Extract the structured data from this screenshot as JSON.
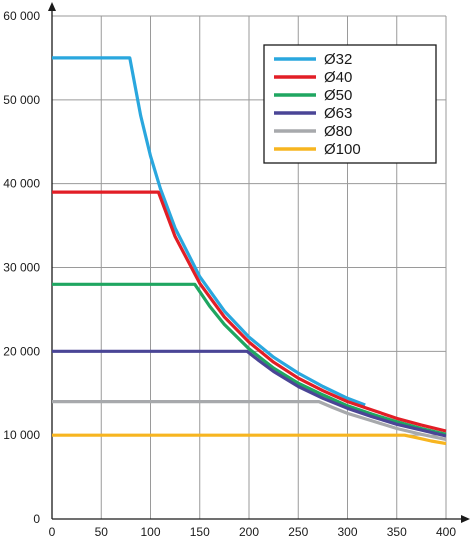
{
  "chart_data": {
    "type": "line",
    "title": "",
    "xlabel": "",
    "ylabel": "",
    "xlim": [
      0,
      400
    ],
    "ylim": [
      0,
      60000
    ],
    "x_ticks": [
      0,
      50,
      100,
      150,
      200,
      250,
      300,
      350,
      400
    ],
    "x_tick_labels": [
      "0",
      "50",
      "100",
      "150",
      "200",
      "250",
      "300",
      "350",
      "400"
    ],
    "y_ticks": [
      0,
      10000,
      20000,
      30000,
      40000,
      50000,
      60000
    ],
    "y_tick_labels": [
      "0",
      "10 000",
      "20 000",
      "30 000",
      "40 000",
      "50 000",
      "60 000"
    ],
    "grid": true,
    "legend_position": "top-right",
    "series": [
      {
        "name": "Ø32",
        "color": "#2aa7de",
        "x": [
          0,
          79,
          90,
          100,
          110,
          125,
          150,
          175,
          200,
          225,
          250,
          275,
          300,
          318
        ],
        "y": [
          55000,
          55000,
          48100,
          43300,
          39400,
          34700,
          28900,
          24800,
          21700,
          19300,
          17400,
          15800,
          14400,
          13600
        ]
      },
      {
        "name": "Ø40",
        "color": "#e21e26",
        "x": [
          0,
          108,
          125,
          150,
          175,
          200,
          225,
          250,
          275,
          300,
          325,
          350,
          375,
          400
        ],
        "y": [
          39000,
          39000,
          33700,
          28100,
          24100,
          21100,
          18700,
          16800,
          15300,
          14000,
          13000,
          12000,
          11200,
          10500
        ]
      },
      {
        "name": "Ø50",
        "color": "#1fa661",
        "x": [
          0,
          145,
          160,
          175,
          200,
          225,
          250,
          275,
          300,
          325,
          350,
          375,
          400
        ],
        "y": [
          28000,
          28000,
          25400,
          23200,
          20300,
          18000,
          16200,
          14800,
          13500,
          12500,
          11600,
          10800,
          10100
        ]
      },
      {
        "name": "Ø63",
        "color": "#4a4596",
        "x": [
          0,
          198,
          210,
          225,
          250,
          275,
          300,
          325,
          350,
          375,
          400
        ],
        "y": [
          20000,
          20000,
          18900,
          17600,
          15800,
          14400,
          13200,
          12200,
          11300,
          10600,
          9900
        ]
      },
      {
        "name": "Ø80",
        "color": "#a7a9ac",
        "x": [
          0,
          271,
          285,
          300,
          325,
          350,
          375,
          400
        ],
        "y": [
          14000,
          14000,
          13300,
          12600,
          11700,
          10800,
          10100,
          9500
        ]
      },
      {
        "name": "Ø100",
        "color": "#f7b520",
        "x": [
          0,
          358,
          370,
          385,
          400
        ],
        "y": [
          10000,
          10000,
          9700,
          9300,
          9000
        ]
      }
    ]
  }
}
